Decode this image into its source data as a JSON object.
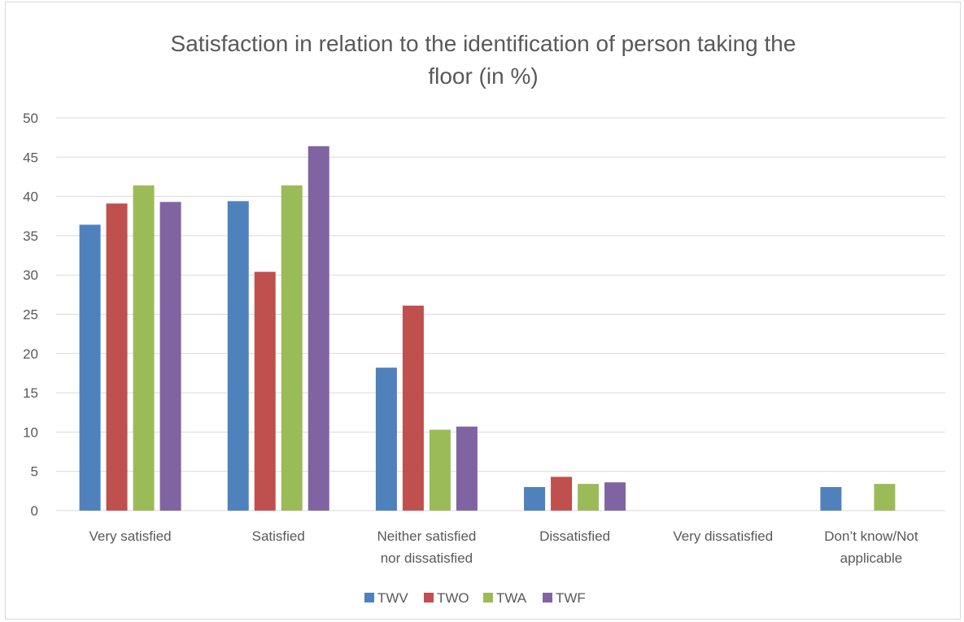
{
  "chart_data": {
    "type": "bar",
    "title": "Satisfaction in relation to the identification of person taking the floor (in %)",
    "title_lines": [
      "Satisfaction in relation to the identification of person taking the",
      "floor (in %)"
    ],
    "categories": [
      "Very satisfied",
      "Satisfied",
      "Neither satisfied nor dissatisfied",
      "Dissatisfied",
      "Very dissatisfied",
      "Don’t know/Not applicable"
    ],
    "category_lines": [
      [
        "Very satisfied"
      ],
      [
        "Satisfied"
      ],
      [
        "Neither satisfied",
        "nor dissatisfied"
      ],
      [
        "Dissatisfied"
      ],
      [
        "Very dissatisfied"
      ],
      [
        "Don’t know/Not",
        "applicable"
      ]
    ],
    "series": [
      {
        "name": "TWV",
        "color": "#4f81bd",
        "values": [
          36.4,
          39.4,
          18.2,
          3.0,
          0,
          3.0
        ]
      },
      {
        "name": "TWO",
        "color": "#c0504d",
        "values": [
          39.1,
          30.4,
          26.1,
          4.3,
          0,
          0
        ]
      },
      {
        "name": "TWA",
        "color": "#9bbb59",
        "values": [
          41.4,
          41.4,
          10.3,
          3.4,
          0,
          3.4
        ]
      },
      {
        "name": "TWF",
        "color": "#8064a2",
        "values": [
          39.3,
          46.4,
          10.7,
          3.6,
          0,
          0
        ]
      }
    ],
    "xlabel": "",
    "ylabel": "",
    "ylim": [
      0,
      50
    ],
    "yticks": [
      0,
      5,
      10,
      15,
      20,
      25,
      30,
      35,
      40,
      45,
      50
    ],
    "grid": true,
    "legend_position": "bottom"
  },
  "colors": {
    "grid": "#d9d9d9",
    "text": "#595959"
  }
}
